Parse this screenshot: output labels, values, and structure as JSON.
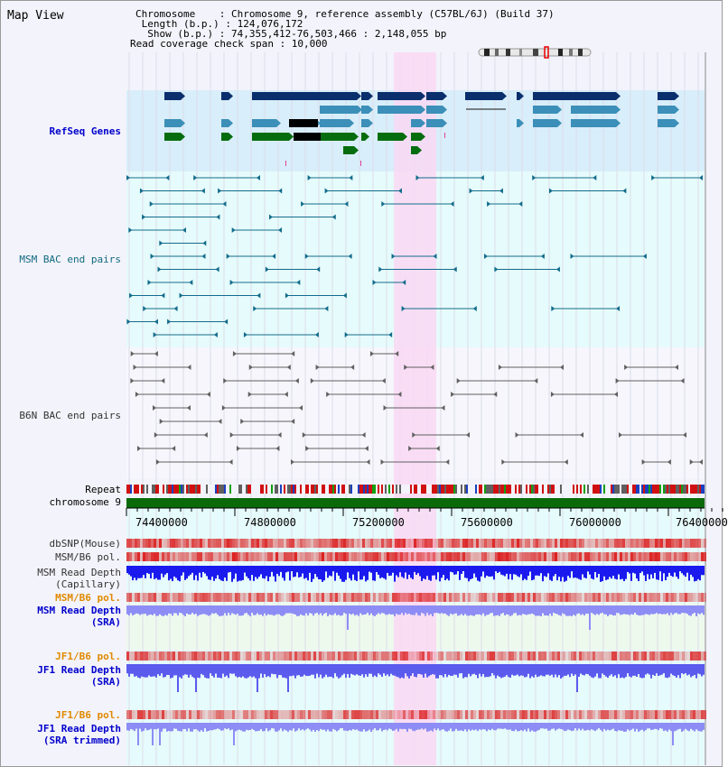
{
  "view": {
    "title": "Map View",
    "chromosome_line": "Chromosome    : Chromosome 9, reference assembly (C57BL/6J) (Build 37)",
    "length_line": " Length (b.p.) : 124,076,172",
    "show_line": "  Show (b.p.) : 74,355,412-76,503,466 : 2,148,055 bp",
    "coverage_line": "Read coverage check span : 10,000"
  },
  "tracks": {
    "refseq": "RefSeq Genes",
    "msm_bac": "MSM BAC end pairs",
    "b6n_bac": "B6N BAC end pairs",
    "repeat": "Repeat",
    "chromosome": "chromosome 9",
    "dbsnp": "dbSNP(Mouse)",
    "msm_b6_pol_1": "MSM/B6 pol.",
    "msm_read_depth_cap": "MSM Read Depth\n(Capillary)",
    "msm_b6_pol_2": "MSM/B6 pol.",
    "msm_read_depth_sra": "MSM Read Depth\n(SRA)",
    "jf1_b6_pol_1": "JF1/B6 pol.",
    "jf1_read_depth_sra": "JF1 Read Depth\n(SRA)",
    "jf1_b6_pol_2": "JF1/B6 pol.",
    "jf1_read_depth_trim": "JF1 Read Depth\n(SRA trimmed)"
  },
  "axis": {
    "ticks": [
      "74400000",
      "74800000",
      "75200000",
      "75600000",
      "76000000",
      "76400000"
    ]
  },
  "colors": {
    "refseq_bg": "#d8eefa",
    "bac_bg": "#e6fbfb",
    "highlight": "#f9d8f3",
    "gene_dark": "#0a2f6c",
    "gene_mid": "#3b8fb8",
    "gene_green": "#066d0e",
    "msm_line": "#126c8c",
    "b6n_line": "#606060",
    "chromosome_bar": "#0a6a0a",
    "depth_capillary": "#1a1aee",
    "depth_sra": "#8d8df5",
    "depth_jf1": "#5b5bee"
  }
}
